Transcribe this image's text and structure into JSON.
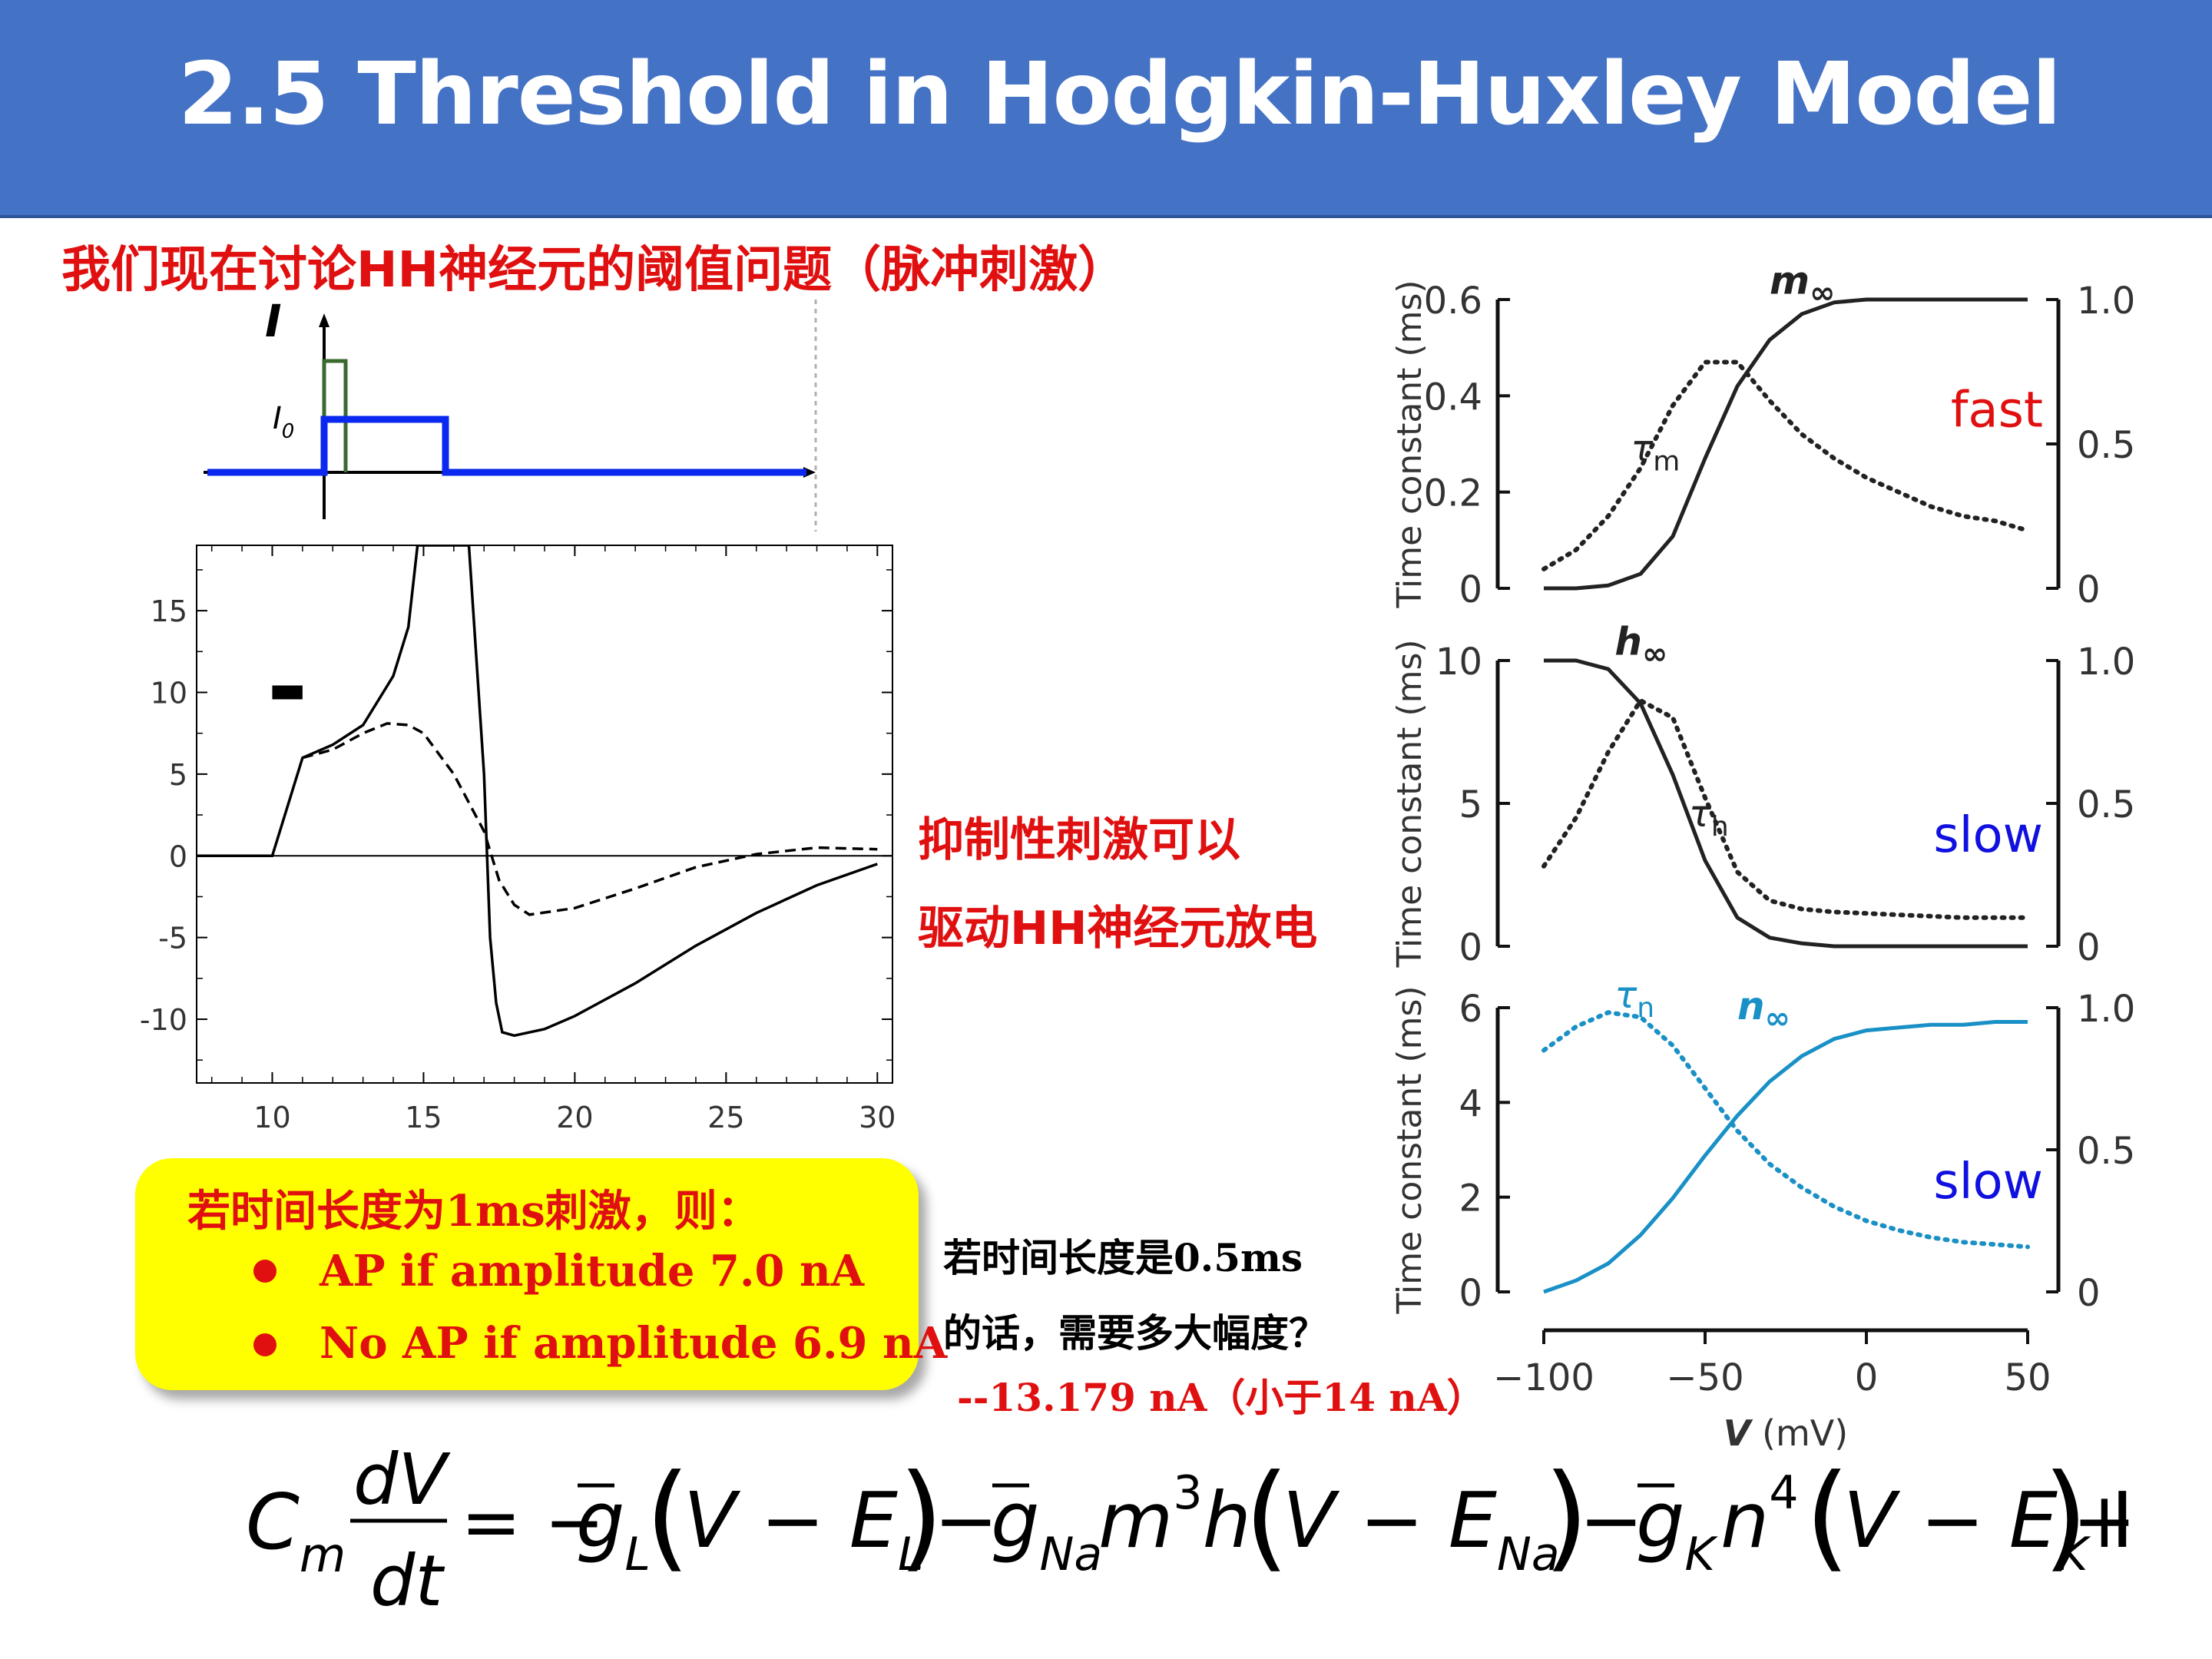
{
  "title": "2.5 Threshold in Hodgkin-Huxley Model",
  "heading": "我们现在讨论HH神经元的阈值问题（脉冲刺激）",
  "stimulus_diagram": {
    "axis_label": "I",
    "level_label": "I",
    "level_subscript": "0"
  },
  "inhibit_note": {
    "line1": "抑制性刺激可以",
    "line2": "驱动HH神经元放电"
  },
  "callout": {
    "head": "若时间长度为1ms刺激，则：",
    "bullets": [
      "AP if amplitude 7.0 nA",
      "No AP if amplitude 6.9 nA"
    ]
  },
  "question": {
    "line1": "若时间长度是0.5ms",
    "line2": "的话，需要多大幅度？"
  },
  "answer": "--13.179 nA（小于14 nA）",
  "voltage_plot": {
    "type": "line",
    "x_ticks": [
      "10",
      "15",
      "20",
      "25",
      "30"
    ],
    "y_ticks": [
      "15",
      "10",
      "5",
      "0",
      "-5",
      "-10"
    ],
    "xlim": [
      7.5,
      30.5
    ],
    "ylim": [
      -13.9,
      19
    ],
    "pulse_marker": {
      "x": [
        10.0,
        11.0
      ],
      "y": 10
    },
    "series": [
      {
        "style": "solid",
        "x": [
          7.5,
          10,
          11,
          12,
          13,
          14,
          14.5,
          14.8,
          16.5,
          17.0,
          17.2,
          17.4,
          17.6,
          18,
          19,
          20,
          22,
          24,
          26,
          28,
          30
        ],
        "y": [
          0,
          0,
          6,
          6.8,
          8,
          11,
          14,
          19,
          19,
          5,
          -5,
          -9,
          -10.8,
          -11,
          -10.6,
          -9.8,
          -7.8,
          -5.5,
          -3.5,
          -1.8,
          -0.5
        ]
      },
      {
        "style": "dashed",
        "x": [
          11,
          12,
          13,
          13.8,
          14.5,
          15,
          16,
          17,
          17.5,
          18,
          18.5,
          20,
          22,
          24,
          26,
          28,
          30
        ],
        "y": [
          6,
          6.5,
          7.5,
          8.1,
          8,
          7.5,
          5,
          1.5,
          -1.5,
          -3,
          -3.6,
          -3.2,
          -2,
          -0.7,
          0.1,
          0.5,
          0.4
        ]
      }
    ]
  },
  "gating_panels": {
    "y_label": "Time constant (ms)",
    "x_label_var": "V",
    "x_label_unit": "(mV)",
    "x_ticks": [
      "−100",
      "−50",
      "0",
      "50"
    ],
    "right_ticks": [
      "1.0",
      "0.5",
      "0"
    ],
    "panels": [
      {
        "left_ticks": [
          "0.6",
          "0.4",
          "0.2",
          "0"
        ],
        "steady_label": "m",
        "steady_sub": "∞",
        "tau_label": "τ",
        "tau_sub": "m",
        "speed": "fast",
        "speed_color": "#e01010",
        "curve_color": "#222222",
        "chart_data": {
          "type": "line",
          "x": [
            -100,
            -90,
            -80,
            -70,
            -60,
            -50,
            -40,
            -30,
            -20,
            -10,
            0,
            10,
            20,
            30,
            40,
            50
          ],
          "series": [
            {
              "name": "m∞",
              "y": [
                0,
                0,
                0.01,
                0.05,
                0.18,
                0.45,
                0.7,
                0.86,
                0.95,
                0.99,
                1,
                1,
                1,
                1,
                1,
                1
              ]
            },
            {
              "name": "τm",
              "y": [
                0.04,
                0.08,
                0.15,
                0.25,
                0.38,
                0.47,
                0.47,
                0.39,
                0.32,
                0.27,
                0.23,
                0.2,
                0.17,
                0.15,
                0.14,
                0.12
              ]
            }
          ]
        }
      },
      {
        "left_ticks": [
          "10",
          "5",
          "0"
        ],
        "steady_label": "h",
        "steady_sub": "∞",
        "tau_label": "τ",
        "tau_sub": "h",
        "speed": "slow",
        "speed_color": "#1010e0",
        "curve_color": "#222222",
        "chart_data": {
          "type": "line",
          "x": [
            -100,
            -90,
            -80,
            -70,
            -60,
            -50,
            -40,
            -30,
            -20,
            -10,
            0,
            10,
            20,
            30,
            40,
            50
          ],
          "series": [
            {
              "name": "h∞",
              "y": [
                1,
                1,
                0.97,
                0.85,
                0.6,
                0.3,
                0.1,
                0.03,
                0.01,
                0,
                0,
                0,
                0,
                0,
                0,
                0
              ]
            },
            {
              "name": "τh",
              "y": [
                2.8,
                4.5,
                6.8,
                8.6,
                8.0,
                5.2,
                2.6,
                1.6,
                1.3,
                1.2,
                1.15,
                1.1,
                1.05,
                1.0,
                1.0,
                1.0
              ]
            }
          ]
        }
      },
      {
        "left_ticks": [
          "6",
          "4",
          "2",
          "0"
        ],
        "steady_label": "n",
        "steady_sub": "∞",
        "tau_label": "τ",
        "tau_sub": "n",
        "speed": "slow",
        "speed_color": "#1010e0",
        "curve_color": "#1990c6",
        "chart_data": {
          "type": "line",
          "x": [
            -100,
            -90,
            -80,
            -70,
            -60,
            -50,
            -40,
            -30,
            -20,
            -10,
            0,
            10,
            20,
            30,
            40,
            50
          ],
          "series": [
            {
              "name": "n∞",
              "y": [
                0,
                0.04,
                0.1,
                0.2,
                0.33,
                0.48,
                0.62,
                0.74,
                0.83,
                0.89,
                0.92,
                0.93,
                0.94,
                0.94,
                0.95,
                0.95
              ]
            },
            {
              "name": "τn",
              "y": [
                5.1,
                5.6,
                5.9,
                5.8,
                5.2,
                4.3,
                3.4,
                2.7,
                2.2,
                1.8,
                1.5,
                1.3,
                1.15,
                1.05,
                1.0,
                0.95
              ]
            }
          ]
        }
      }
    ]
  },
  "equation": {
    "lhs": "C",
    "lhs_sub": "m",
    "num": "dV",
    "den": "dt",
    "t_eq": "= −",
    "g": "g",
    "L": "L",
    "t1": "V − E",
    "minus": "−",
    "Na": "Na",
    "m3h_m": "m",
    "exp3": "3",
    "m3h_h": "h",
    "K": "K",
    "n": "n",
    "exp4": "4",
    "plusI": "+ I"
  }
}
